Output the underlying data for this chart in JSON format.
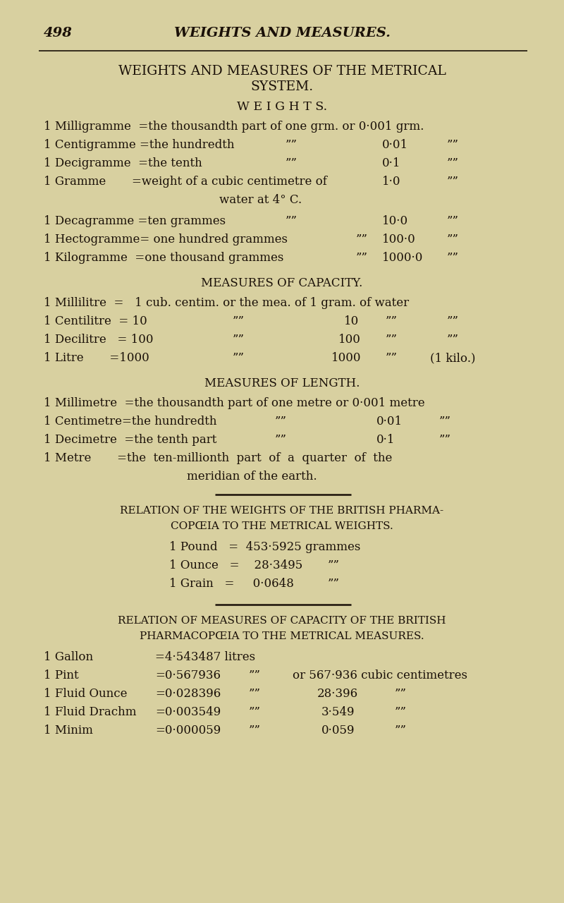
{
  "bg_color": "#d8d0a0",
  "text_color": "#1a1008",
  "page_number": "498",
  "page_header": "WEIGHTS AND MEASURES.",
  "title_line1": "WEIGHTS AND MEASURES OF THE METRICAL",
  "title_line2": "SYSTEM.",
  "section_weights": "W E I G H T S.",
  "section_capacity": "MEASURES OF CAPACITY.",
  "section_length": "MEASURES OF LENGTH.",
  "section_relation1_line1": "RELATION OF THE WEIGHTS OF THE BRITISH PHARMA-",
  "section_relation1_line2": "COPŒIA TO THE METRICAL WEIGHTS.",
  "section_relation2_line1": "RELATION OF MEASURES OF CAPACITY OF THE BRITISH",
  "section_relation2_line2": "PHARMACOPŒIA TO THE METRICAL MEASURES."
}
